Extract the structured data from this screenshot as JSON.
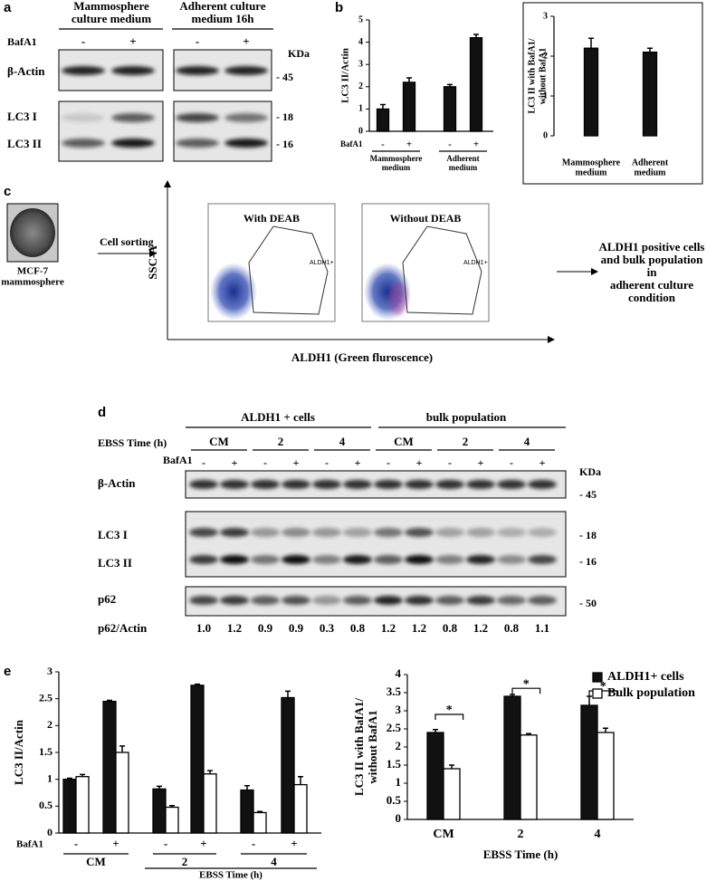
{
  "panel_a": {
    "letter": "a",
    "headers": [
      [
        "Mammosphere",
        "culture medium"
      ],
      [
        "Adherent culture",
        "medium 16h"
      ]
    ],
    "bafa1_label": "BafA1",
    "bafa1": [
      "-",
      "+",
      "-",
      "+"
    ],
    "kda": "KDa",
    "rows": [
      "β-Actin",
      "LC3 I",
      "LC3 II"
    ],
    "markers": [
      "- 45",
      "- 18",
      "- 16"
    ]
  },
  "panel_b": {
    "letter": "b"
  },
  "panel_c": {
    "letter": "c",
    "image_label": [
      "MCF-7",
      "mammosphere"
    ],
    "step": "Cell sorting",
    "y_axis": "SSC-A",
    "x_axis": "ALDH1 (Green fluroscence)",
    "plots": [
      {
        "title": "With DEAB",
        "gate": "ALDH1+"
      },
      {
        "title": "Without DEAB",
        "gate": "ALDH1+"
      }
    ],
    "result": [
      "ALDH1 positive cells",
      "and bulk population",
      "in",
      "adherent culture",
      "condition"
    ]
  },
  "panel_d": {
    "letter": "d",
    "header_groups": [
      "ALDH1 + cells",
      "bulk population"
    ],
    "ebss_label": "EBSS  Time (h)",
    "time_groups": [
      "CM",
      "2",
      "4",
      "CM",
      "2",
      "4"
    ],
    "bafa1_label": "BafA1",
    "bafa1": [
      "-",
      "+",
      "-",
      "+",
      "-",
      "+",
      "-",
      "+",
      "-",
      "+",
      "-",
      "+"
    ],
    "kda": "KDa",
    "rows": [
      "β-Actin",
      "LC3 I",
      "LC3 II",
      "p62"
    ],
    "markers": [
      "- 45",
      "- 18",
      "- 16",
      "- 50"
    ],
    "ratio_label": "p62/Actin",
    "ratio_values": [
      "1.0",
      "1.2",
      "0.9",
      "0.9",
      "0.3",
      "0.8",
      "1.2",
      "1.2",
      "0.8",
      "1.2",
      "0.8",
      "1.1"
    ]
  },
  "panel_e": {
    "letter": "e"
  },
  "chart_data": [
    {
      "type": "bar",
      "ylabel": "LC3 II/Actin",
      "categories": [
        "-",
        "+",
        "-",
        "+"
      ],
      "bafa1_label": "BafA1",
      "groups": [
        [
          "Mammosphere",
          "medium"
        ],
        [
          "Adherent",
          "medium"
        ]
      ],
      "values": [
        1.0,
        2.2,
        2.0,
        4.2
      ],
      "errors": [
        0.2,
        0.2,
        0.1,
        0.15
      ],
      "color": "#111111",
      "ylim": [
        0,
        5
      ],
      "yticks": [
        0,
        1,
        2,
        3,
        4,
        5
      ]
    },
    {
      "type": "bar",
      "ylabel": [
        "LC3 II with BafA1/",
        "without BafA1"
      ],
      "categories": [
        [
          "Mammosphere",
          "medium"
        ],
        [
          "Adherent",
          "medium"
        ]
      ],
      "values": [
        2.2,
        2.1
      ],
      "errors": [
        0.25,
        0.1
      ],
      "color": "#111111",
      "ylim": [
        0,
        3
      ],
      "yticks": [
        0,
        1,
        2,
        3
      ]
    },
    {
      "type": "bar",
      "ylabel": "LC3 II/Actin",
      "categories": [
        "-",
        "+",
        "-",
        "+",
        "-",
        "+"
      ],
      "bafa1_label": "BafA1",
      "groups": [
        [
          "CM"
        ],
        [
          "2"
        ],
        [
          "4"
        ]
      ],
      "xlabel": "EBSS  Time (h)",
      "series": [
        {
          "name": "ALDH1+ cells",
          "color": "#111111",
          "values": [
            1.0,
            2.45,
            0.82,
            2.75,
            0.8,
            2.52
          ],
          "errors": [
            0.02,
            0.02,
            0.05,
            0.02,
            0.08,
            0.12
          ]
        },
        {
          "name": "Bulk population",
          "color": "#ffffff",
          "values": [
            1.05,
            1.5,
            0.48,
            1.1,
            0.38,
            0.9
          ],
          "errors": [
            0.04,
            0.12,
            0.03,
            0.06,
            0.02,
            0.15
          ]
        }
      ],
      "ylim": [
        0,
        3
      ],
      "yticks": [
        0,
        0.5,
        1,
        1.5,
        2,
        2.5,
        3
      ]
    },
    {
      "type": "bar",
      "ylabel": [
        "LC3 II with BafA1/",
        "without BafA1"
      ],
      "categories": [
        "CM",
        "2",
        "4"
      ],
      "xlabel": "EBSS  Time (h)",
      "series": [
        {
          "name": "ALDH1+ cells",
          "color": "#111111",
          "values": [
            2.4,
            3.4,
            3.15
          ],
          "errors": [
            0.08,
            0.05,
            0.25
          ]
        },
        {
          "name": "Bulk population",
          "color": "#ffffff",
          "values": [
            1.4,
            2.33,
            2.4
          ],
          "errors": [
            0.1,
            0.04,
            0.12
          ]
        }
      ],
      "ylim": [
        0,
        4
      ],
      "yticks": [
        0,
        0.5,
        1,
        1.5,
        2,
        2.5,
        3,
        3.5,
        4
      ],
      "legend": "upper right",
      "annotations": [
        {
          "text": "*",
          "x": "CM",
          "y": 2.9
        },
        {
          "text": "*",
          "x": "2",
          "y": 3.62
        },
        {
          "text": "*",
          "x": "4",
          "y": 3.55
        }
      ]
    }
  ]
}
